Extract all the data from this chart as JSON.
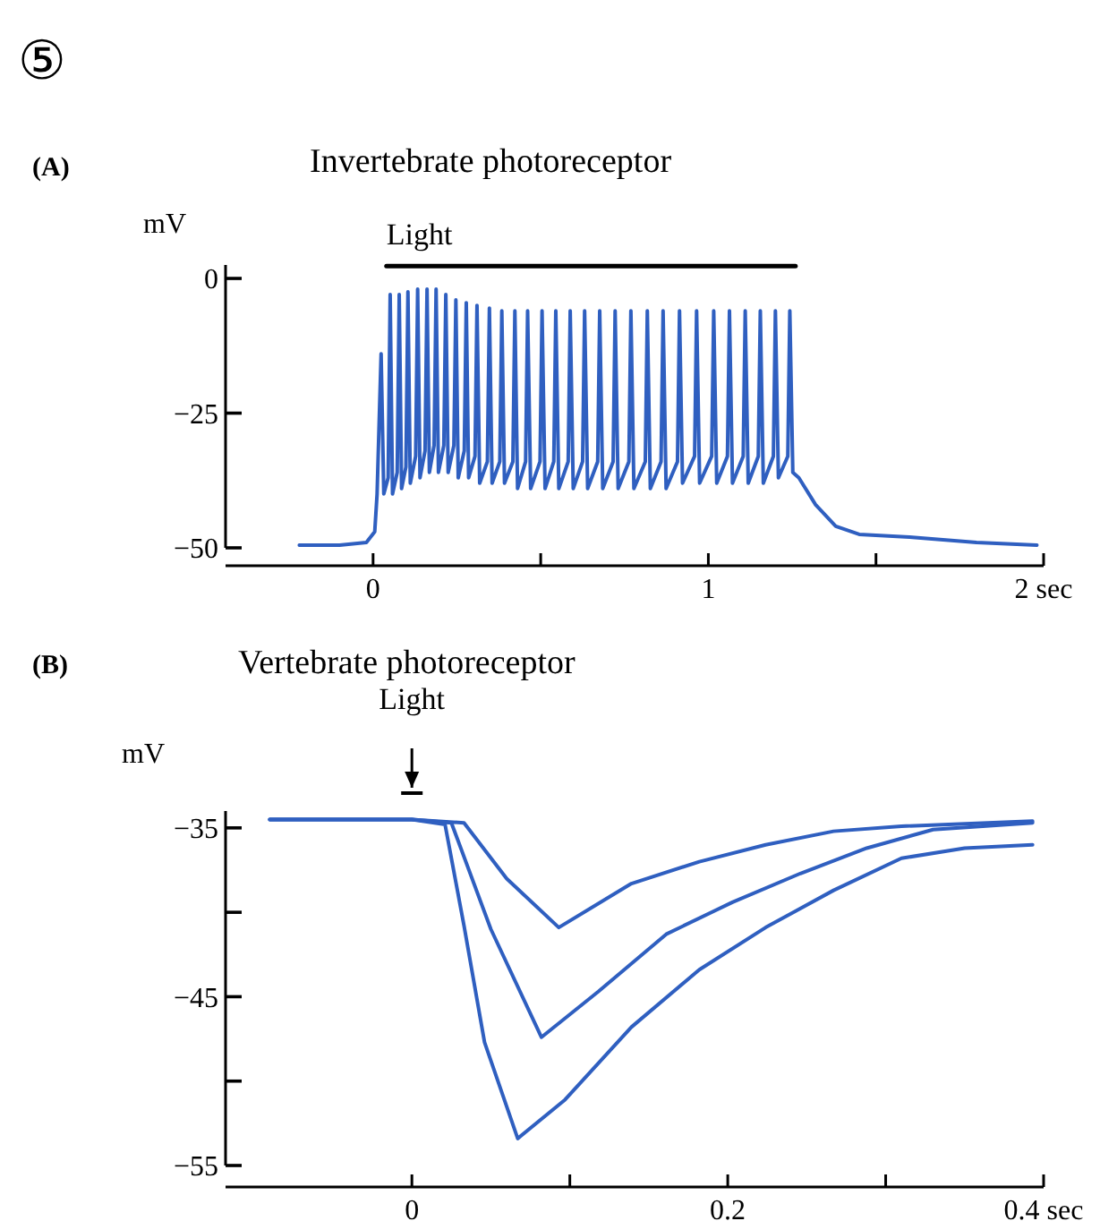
{
  "chart_data": [
    {
      "type": "line",
      "title": "Invertebrate photoreceptor",
      "ylabel": "mV",
      "annotations": [
        "⑤",
        "(A)"
      ],
      "xlim": [
        -0.44,
        2
      ],
      "xticks": [
        0,
        {
          "value": 0.5,
          "label": null
        },
        1,
        {
          "value": 1.5,
          "label": null
        },
        {
          "value": 2,
          "label": "2 sec"
        }
      ],
      "ylim": [
        -50,
        2.5
      ],
      "yticks": [
        0,
        {
          "value": -25,
          "label": "−25"
        },
        {
          "value": -50,
          "label": "−50"
        }
      ],
      "series": [
        {
          "type": "line",
          "name": "Light",
          "color": "#000000",
          "x": [
            0.04,
            1.26
          ],
          "values": [
            2.3,
            2.3
          ]
        },
        {
          "color": "#2f5fc0",
          "x": [
            -0.22,
            -0.1,
            -0.02,
            0.005,
            0.012,
            0.024,
            0.032,
            0.045,
            0.051,
            0.058,
            0.072,
            0.078,
            0.085,
            0.098,
            0.104,
            0.111,
            0.127,
            0.133,
            0.14,
            0.155,
            0.161,
            0.168,
            0.182,
            0.188,
            0.195,
            0.211,
            0.217,
            0.224,
            0.241,
            0.247,
            0.254,
            0.272,
            0.278,
            0.285,
            0.304,
            0.31,
            0.318,
            0.341,
            0.347,
            0.355,
            0.378,
            0.384,
            0.392,
            0.417,
            0.423,
            0.431,
            0.455,
            0.461,
            0.47,
            0.498,
            0.504,
            0.513,
            0.539,
            0.545,
            0.554,
            0.582,
            0.588,
            0.597,
            0.625,
            0.631,
            0.64,
            0.67,
            0.676,
            0.685,
            0.716,
            0.722,
            0.731,
            0.763,
            0.769,
            0.778,
            0.812,
            0.818,
            0.827,
            0.859,
            0.865,
            0.874,
            0.908,
            0.914,
            0.923,
            0.959,
            0.965,
            0.974,
            1.01,
            1.016,
            1.025,
            1.057,
            1.063,
            1.072,
            1.104,
            1.11,
            1.119,
            1.149,
            1.155,
            1.164,
            1.194,
            1.2,
            1.209,
            1.237,
            1.243,
            1.252,
            1.27,
            1.32,
            1.38,
            1.45,
            1.6,
            1.8,
            1.98
          ],
          "values": [
            -49.5,
            -49.5,
            -49,
            -47,
            -40,
            -14,
            -40,
            -37,
            -3,
            -40,
            -36,
            -3,
            -39,
            -35,
            -2.5,
            -38,
            -33,
            -2,
            -37,
            -32,
            -2,
            -36,
            -31,
            -2,
            -36,
            -31,
            -3,
            -36,
            -31,
            -4,
            -37,
            -32,
            -4.5,
            -37,
            -33,
            -5,
            -38,
            -34,
            -5.5,
            -38,
            -34,
            -6,
            -38,
            -34,
            -6,
            -39,
            -34,
            -6,
            -39,
            -34,
            -6,
            -39,
            -34,
            -6,
            -39,
            -34,
            -6,
            -39,
            -34,
            -6,
            -39,
            -34,
            -6,
            -39,
            -34,
            -6,
            -39,
            -34,
            -6,
            -39,
            -34,
            -6,
            -39,
            -34,
            -6,
            -39,
            -34,
            -6,
            -38,
            -33,
            -6,
            -38,
            -33,
            -6,
            -38,
            -33,
            -6,
            -38,
            -33,
            -6,
            -38,
            -33,
            -6,
            -38,
            -33,
            -6,
            -37,
            -33,
            -6,
            -36,
            -37,
            -42,
            -46,
            -47.5,
            -48,
            -49,
            -49.5
          ]
        }
      ]
    },
    {
      "type": "line",
      "title": "Vertebrate photoreceptor",
      "ylabel": "mV",
      "annotations": [
        "(B)"
      ],
      "xlim": [
        -0.118,
        0.4
      ],
      "xticks": [
        0,
        {
          "value": 0.1,
          "label": null
        },
        0.2,
        {
          "value": 0.3,
          "label": null
        },
        {
          "value": 0.4,
          "label": "0.4 sec"
        }
      ],
      "ylim": [
        -55,
        -34
      ],
      "yticks": [
        {
          "value": -35,
          "label": "−35"
        },
        {
          "value": -40,
          "label": null
        },
        {
          "value": -45,
          "label": "−45"
        },
        {
          "value": -50,
          "label": null
        },
        {
          "value": -55,
          "label": "−55"
        }
      ],
      "ref_lines": [
        {
          "axis": "x",
          "value": 0,
          "label": "Light",
          "color": "#000000"
        }
      ],
      "series": [
        {
          "color": "#2f5fc0",
          "x": [
            -0.09,
            0,
            0.033,
            0.06,
            0.093,
            0.139,
            0.182,
            0.224,
            0.267,
            0.31,
            0.393
          ],
          "values": [
            -34.5,
            -34.5,
            -34.7,
            -38,
            -40.9,
            -38.3,
            -37,
            -36,
            -35.2,
            -34.9,
            -34.6
          ]
        },
        {
          "color": "#2f5fc0",
          "x": [
            -0.09,
            0,
            0.025,
            0.05,
            0.082,
            0.118,
            0.161,
            0.203,
            0.246,
            0.288,
            0.33,
            0.393
          ],
          "values": [
            -34.5,
            -34.5,
            -34.7,
            -41,
            -47.4,
            -44.7,
            -41.3,
            -39.4,
            -37.7,
            -36.2,
            -35.1,
            -34.7
          ]
        },
        {
          "color": "#2f5fc0",
          "x": [
            -0.09,
            0,
            0.021,
            0.033,
            0.046,
            0.067,
            0.097,
            0.139,
            0.182,
            0.224,
            0.267,
            0.31,
            0.35,
            0.393
          ],
          "values": [
            -34.5,
            -34.5,
            -34.8,
            -40.8,
            -47.7,
            -53.4,
            -51.1,
            -46.8,
            -43.4,
            -40.9,
            -38.7,
            -36.8,
            -36.2,
            -36
          ]
        }
      ]
    }
  ]
}
